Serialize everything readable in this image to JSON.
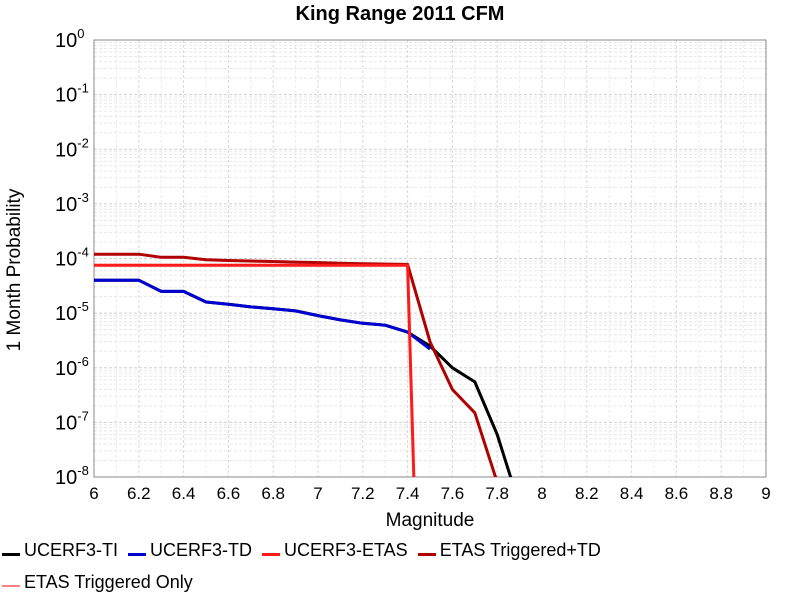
{
  "chart_data": {
    "type": "line",
    "title": "King Range 2011 CFM",
    "xlabel": "Magnitude",
    "ylabel": "1 Month Probability",
    "xlim": [
      6,
      9
    ],
    "ylim": [
      1e-08,
      1
    ],
    "yscale": "log",
    "grid": true,
    "x_ticks": [
      "6",
      "6.2",
      "6.4",
      "6.6",
      "6.8",
      "7",
      "7.2",
      "7.4",
      "7.6",
      "7.8",
      "8",
      "8.2",
      "8.4",
      "8.6",
      "8.8",
      "9"
    ],
    "y_tick_exponents": [
      "0",
      "-1",
      "-2",
      "-3",
      "-4",
      "-5",
      "-6",
      "-7",
      "-8"
    ],
    "y_tick_base": "10",
    "legend_position": "bottom",
    "series": [
      {
        "name": "UCERF3-TI",
        "color": "#000000",
        "x": [
          6.0,
          6.1,
          6.2,
          6.3,
          6.4,
          6.5,
          6.6,
          6.7,
          6.8,
          6.9,
          7.0,
          7.1,
          7.2,
          7.3,
          7.4,
          7.5,
          7.6,
          7.7,
          7.8,
          7.9
        ],
        "y": [
          4e-05,
          4e-05,
          4e-05,
          2.5e-05,
          2.5e-05,
          1.6e-05,
          1.45e-05,
          1.3e-05,
          1.2e-05,
          1.1e-05,
          9e-06,
          7.5e-06,
          6.5e-06,
          6e-06,
          4.5e-06,
          2.5e-06,
          1e-06,
          5.5e-07,
          6e-08,
          3e-09
        ]
      },
      {
        "name": "UCERF3-TD",
        "color": "#0000d0",
        "x": [
          6.0,
          6.1,
          6.2,
          6.3,
          6.4,
          6.5,
          6.6,
          6.7,
          6.8,
          6.9,
          7.0,
          7.1,
          7.2,
          7.3,
          7.4,
          7.5
        ],
        "y": [
          4e-05,
          4e-05,
          4e-05,
          2.5e-05,
          2.5e-05,
          1.6e-05,
          1.45e-05,
          1.3e-05,
          1.2e-05,
          1.1e-05,
          9e-06,
          7.5e-06,
          6.5e-06,
          6e-06,
          4.5e-06,
          2.2e-06
        ]
      },
      {
        "name": "UCERF3-ETAS",
        "color": "#ff1a1a",
        "x": [
          6.0,
          6.1,
          6.2,
          6.3,
          6.4,
          6.5,
          6.6,
          6.7,
          6.8,
          6.9,
          7.0,
          7.1,
          7.2,
          7.3,
          7.4,
          7.43
        ],
        "y": [
          7.5e-05,
          7.5e-05,
          7.5e-05,
          7.5e-05,
          7.5e-05,
          7.5e-05,
          7.5e-05,
          7.5e-05,
          7.5e-05,
          7.5e-05,
          7.5e-05,
          7.5e-05,
          7.5e-05,
          7.5e-05,
          7.5e-05,
          5e-09
        ]
      },
      {
        "name": "ETAS Triggered+TD",
        "color": "#b00000",
        "x": [
          6.0,
          6.1,
          6.2,
          6.3,
          6.4,
          6.5,
          6.6,
          6.7,
          6.8,
          6.9,
          7.0,
          7.1,
          7.2,
          7.3,
          7.4,
          7.5,
          7.6,
          7.7,
          7.8
        ],
        "y": [
          0.00012,
          0.00012,
          0.00012,
          0.000105,
          0.000105,
          9.5e-05,
          9.2e-05,
          9e-05,
          8.8e-05,
          8.6e-05,
          8.4e-05,
          8.2e-05,
          8e-05,
          7.9e-05,
          7.8e-05,
          3e-06,
          4e-07,
          1.5e-07,
          8e-09
        ]
      },
      {
        "name": "ETAS Triggered Only",
        "color": "#ff8080",
        "x": [],
        "y": []
      }
    ]
  }
}
